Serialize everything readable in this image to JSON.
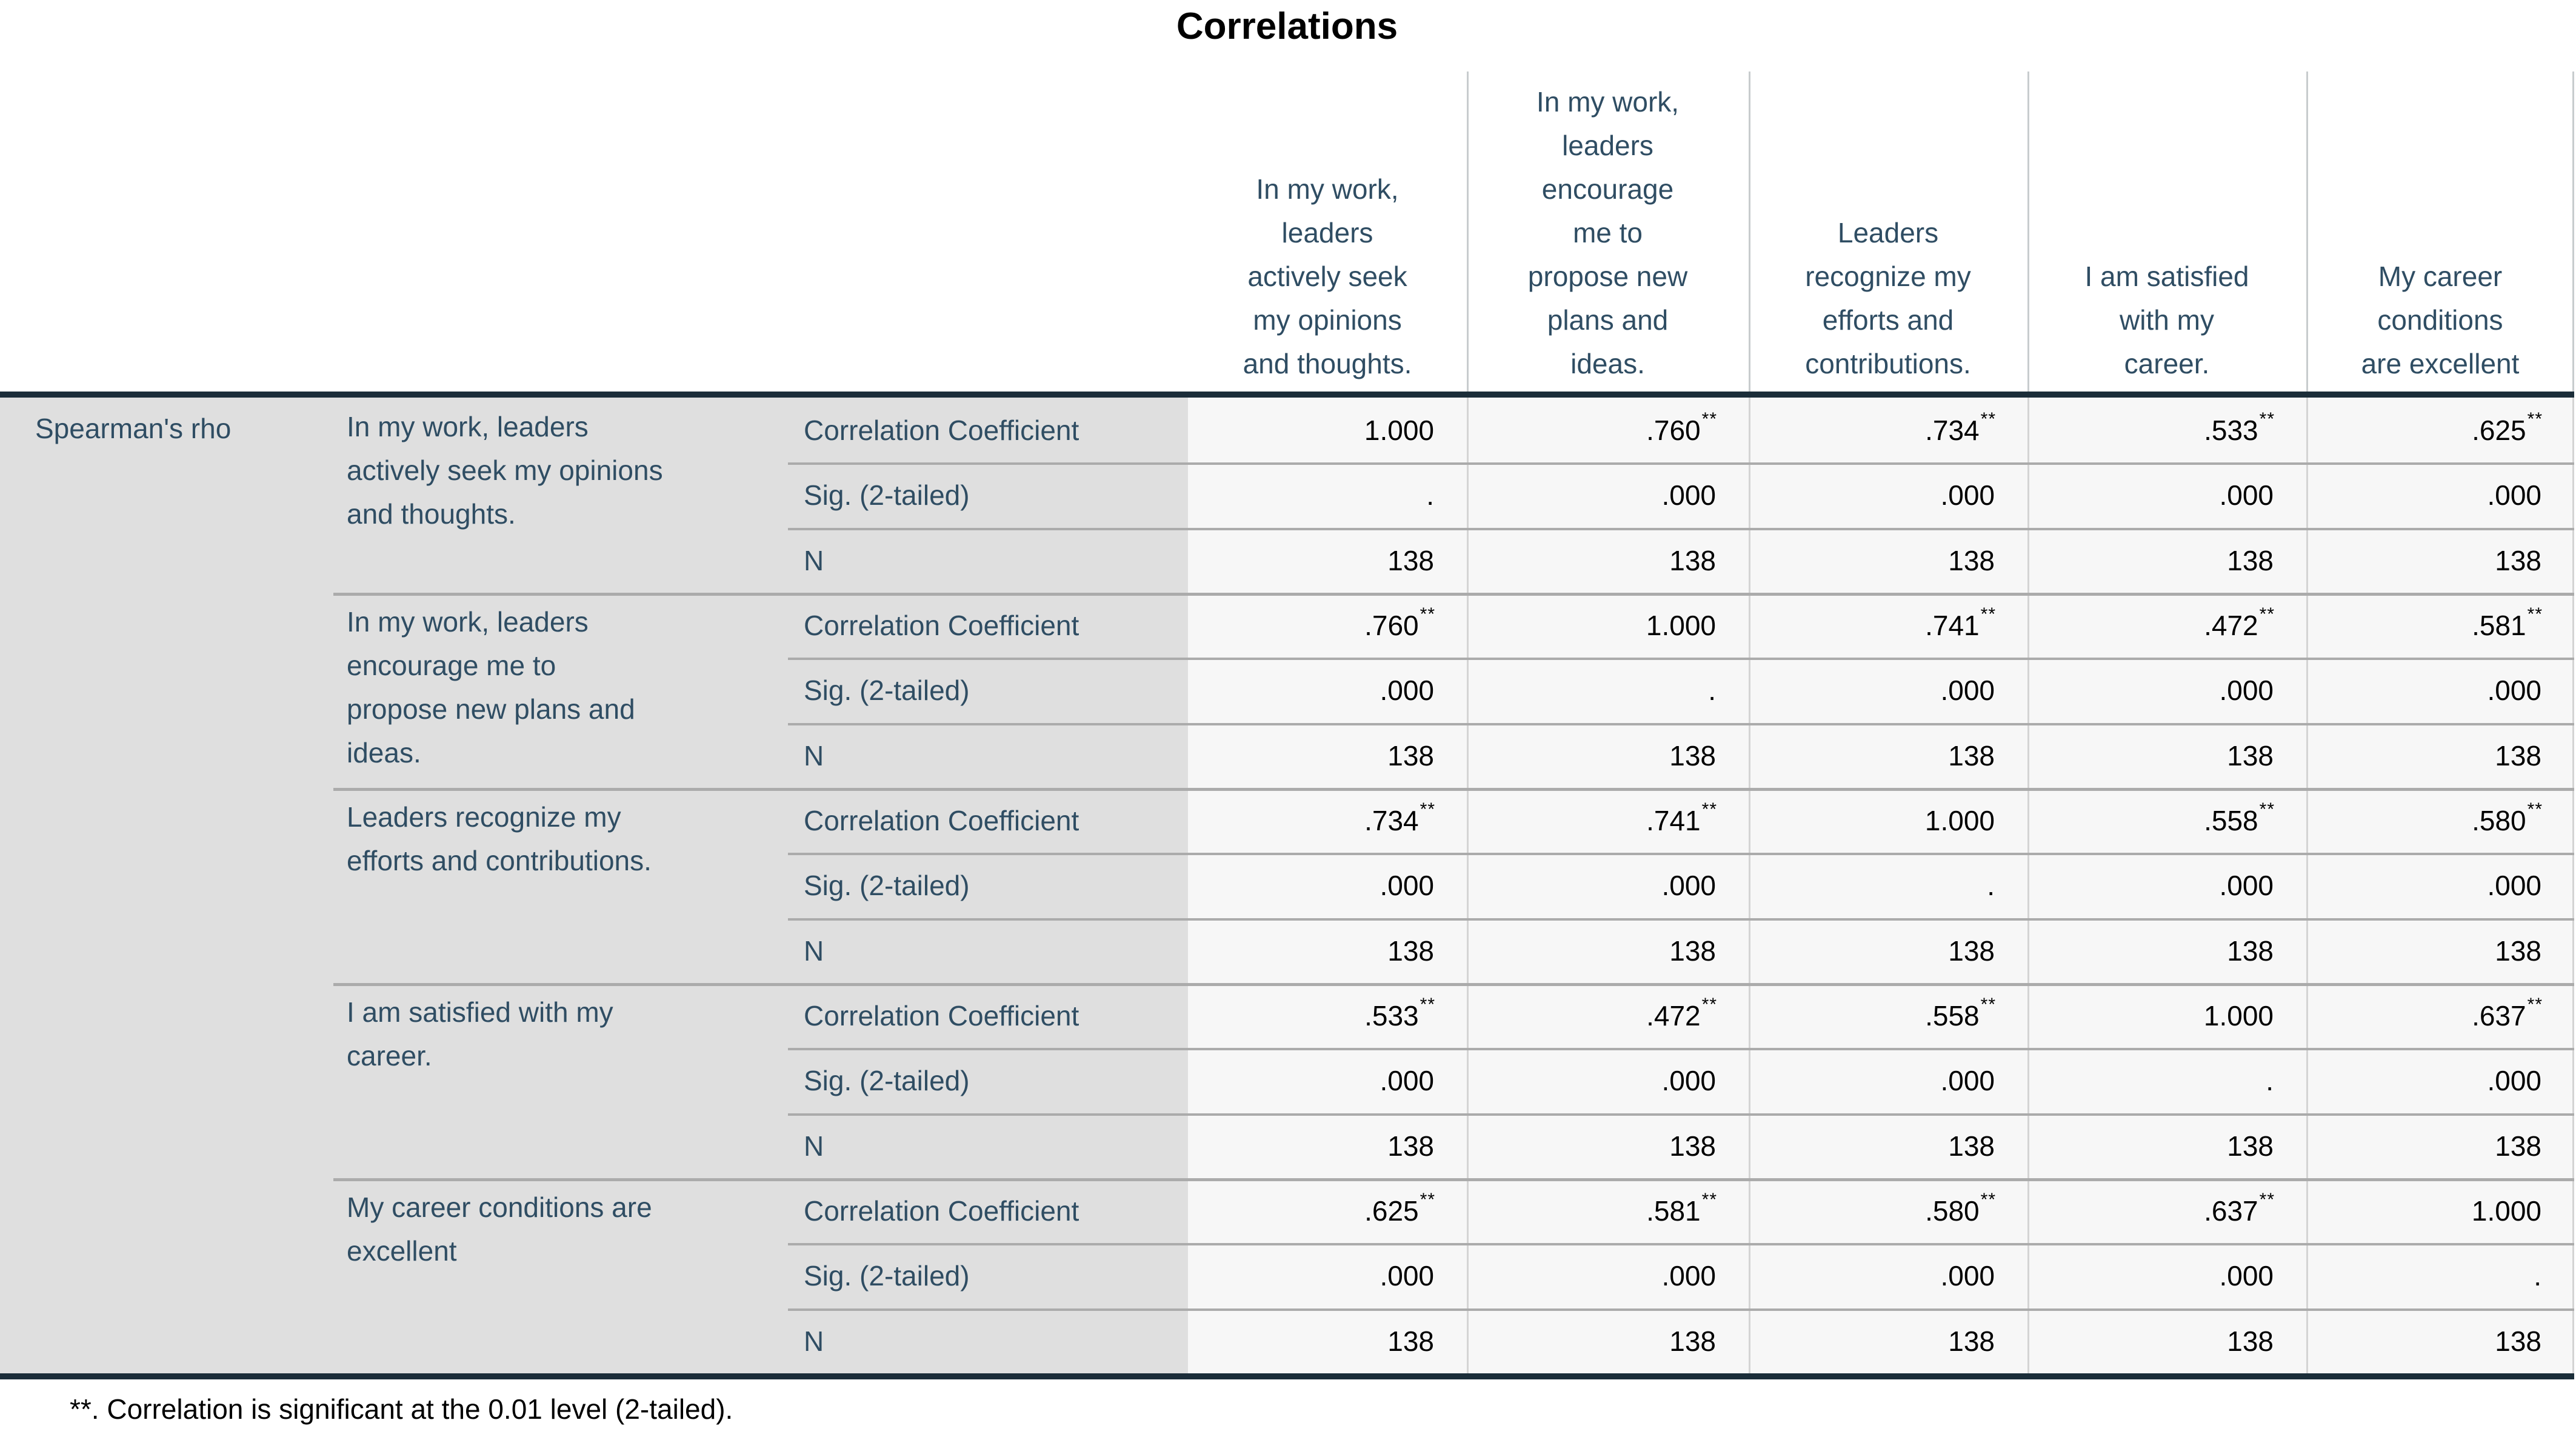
{
  "title": "Correlations",
  "footnote": "**. Correlation is significant at the 0.01 level (2-tailed).",
  "colors": {
    "label_text": "#2F4D63",
    "label_background": "#DFDFDF",
    "data_background": "#F7F7F7",
    "dark_rule": "#1B2D39",
    "gray_rule": "#ABABAB"
  },
  "table": {
    "row_group_label": "Spearman's rho",
    "column_headers": [
      "In my work,\nleaders\nactively seek\nmy opinions\nand thoughts.",
      "In my work,\nleaders\nencourage\nme to\npropose new\nplans and\nideas.",
      "Leaders\nrecognize my\nefforts and\ncontributions.",
      "I am satisfied\nwith my\ncareer.",
      "My career\nconditions\nare excellent"
    ],
    "blocks": [
      {
        "variable": "In my work, leaders\nactively seek my opinions\nand thoughts.",
        "rows": [
          {
            "label": "Correlation Coefficient",
            "cells": [
              {
                "v": "1.000",
                "s": ""
              },
              {
                "v": ".760",
                "s": "**"
              },
              {
                "v": ".734",
                "s": "**"
              },
              {
                "v": ".533",
                "s": "**"
              },
              {
                "v": ".625",
                "s": "**"
              }
            ]
          },
          {
            "label": "Sig. (2-tailed)",
            "cells": [
              {
                "v": ".",
                "s": ""
              },
              {
                "v": ".000",
                "s": ""
              },
              {
                "v": ".000",
                "s": ""
              },
              {
                "v": ".000",
                "s": ""
              },
              {
                "v": ".000",
                "s": ""
              }
            ]
          },
          {
            "label": "N",
            "cells": [
              {
                "v": "138",
                "s": ""
              },
              {
                "v": "138",
                "s": ""
              },
              {
                "v": "138",
                "s": ""
              },
              {
                "v": "138",
                "s": ""
              },
              {
                "v": "138",
                "s": ""
              }
            ]
          }
        ]
      },
      {
        "variable": "In my work, leaders\nencourage me to\npropose new plans and\nideas.",
        "rows": [
          {
            "label": "Correlation Coefficient",
            "cells": [
              {
                "v": ".760",
                "s": "**"
              },
              {
                "v": "1.000",
                "s": ""
              },
              {
                "v": ".741",
                "s": "**"
              },
              {
                "v": ".472",
                "s": "**"
              },
              {
                "v": ".581",
                "s": "**"
              }
            ]
          },
          {
            "label": "Sig. (2-tailed)",
            "cells": [
              {
                "v": ".000",
                "s": ""
              },
              {
                "v": ".",
                "s": ""
              },
              {
                "v": ".000",
                "s": ""
              },
              {
                "v": ".000",
                "s": ""
              },
              {
                "v": ".000",
                "s": ""
              }
            ]
          },
          {
            "label": "N",
            "cells": [
              {
                "v": "138",
                "s": ""
              },
              {
                "v": "138",
                "s": ""
              },
              {
                "v": "138",
                "s": ""
              },
              {
                "v": "138",
                "s": ""
              },
              {
                "v": "138",
                "s": ""
              }
            ]
          }
        ]
      },
      {
        "variable": "Leaders recognize my\nefforts and contributions.",
        "rows": [
          {
            "label": "Correlation Coefficient",
            "cells": [
              {
                "v": ".734",
                "s": "**"
              },
              {
                "v": ".741",
                "s": "**"
              },
              {
                "v": "1.000",
                "s": ""
              },
              {
                "v": ".558",
                "s": "**"
              },
              {
                "v": ".580",
                "s": "**"
              }
            ]
          },
          {
            "label": "Sig. (2-tailed)",
            "cells": [
              {
                "v": ".000",
                "s": ""
              },
              {
                "v": ".000",
                "s": ""
              },
              {
                "v": ".",
                "s": ""
              },
              {
                "v": ".000",
                "s": ""
              },
              {
                "v": ".000",
                "s": ""
              }
            ]
          },
          {
            "label": "N",
            "cells": [
              {
                "v": "138",
                "s": ""
              },
              {
                "v": "138",
                "s": ""
              },
              {
                "v": "138",
                "s": ""
              },
              {
                "v": "138",
                "s": ""
              },
              {
                "v": "138",
                "s": ""
              }
            ]
          }
        ]
      },
      {
        "variable": "I am satisfied with my\ncareer.",
        "rows": [
          {
            "label": "Correlation Coefficient",
            "cells": [
              {
                "v": ".533",
                "s": "**"
              },
              {
                "v": ".472",
                "s": "**"
              },
              {
                "v": ".558",
                "s": "**"
              },
              {
                "v": "1.000",
                "s": ""
              },
              {
                "v": ".637",
                "s": "**"
              }
            ]
          },
          {
            "label": "Sig. (2-tailed)",
            "cells": [
              {
                "v": ".000",
                "s": ""
              },
              {
                "v": ".000",
                "s": ""
              },
              {
                "v": ".000",
                "s": ""
              },
              {
                "v": ".",
                "s": ""
              },
              {
                "v": ".000",
                "s": ""
              }
            ]
          },
          {
            "label": "N",
            "cells": [
              {
                "v": "138",
                "s": ""
              },
              {
                "v": "138",
                "s": ""
              },
              {
                "v": "138",
                "s": ""
              },
              {
                "v": "138",
                "s": ""
              },
              {
                "v": "138",
                "s": ""
              }
            ]
          }
        ]
      },
      {
        "variable": "My career conditions are\nexcellent",
        "rows": [
          {
            "label": "Correlation Coefficient",
            "cells": [
              {
                "v": ".625",
                "s": "**"
              },
              {
                "v": ".581",
                "s": "**"
              },
              {
                "v": ".580",
                "s": "**"
              },
              {
                "v": ".637",
                "s": "**"
              },
              {
                "v": "1.000",
                "s": ""
              }
            ]
          },
          {
            "label": "Sig. (2-tailed)",
            "cells": [
              {
                "v": ".000",
                "s": ""
              },
              {
                "v": ".000",
                "s": ""
              },
              {
                "v": ".000",
                "s": ""
              },
              {
                "v": ".000",
                "s": ""
              },
              {
                "v": ".",
                "s": ""
              }
            ]
          },
          {
            "label": "N",
            "cells": [
              {
                "v": "138",
                "s": ""
              },
              {
                "v": "138",
                "s": ""
              },
              {
                "v": "138",
                "s": ""
              },
              {
                "v": "138",
                "s": ""
              },
              {
                "v": "138",
                "s": ""
              }
            ]
          }
        ]
      }
    ]
  }
}
